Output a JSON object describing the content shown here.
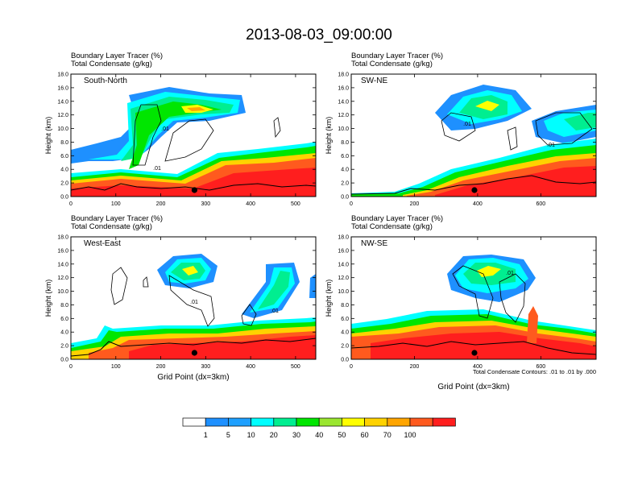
{
  "figure": {
    "title": "2013-08-03_09:00:00",
    "contour_note": "Total Condensate Contours: .01 to .01 by .000",
    "contour_label": ".01"
  },
  "colorbar": {
    "colors": [
      "#ffffff",
      "#1e90ff",
      "#1ea0ff",
      "#00ffff",
      "#00ee90",
      "#00e600",
      "#9ae62f",
      "#ffff00",
      "#ffd200",
      "#ffa500",
      "#ff5a1e",
      "#ff1e1e"
    ],
    "tick_labels": [
      "1",
      "5",
      "10",
      "20",
      "30",
      "40",
      "50",
      "60",
      "70",
      "100"
    ]
  },
  "chart_data": [
    {
      "type": "heatmap",
      "panel": "South-North",
      "label_left_1": "Boundary Layer Tracer   (%)",
      "label_left_2": "Total Condensate   (g/kg)",
      "ylabel": "Height (km)",
      "xlabel": "",
      "xlim": [
        0,
        545
      ],
      "ylim": [
        0,
        18
      ],
      "xticks": [
        0,
        100,
        200,
        300,
        400,
        500
      ],
      "yticks": [
        "0.0",
        "2.0",
        "4.0",
        "6.0",
        "8.0",
        "10.0",
        "12.0",
        "14.0",
        "16.0",
        "18.0"
      ],
      "marker_x": 275,
      "boundary_layer_top_km": [
        [
          0,
          3.0
        ],
        [
          150,
          3.6
        ],
        [
          220,
          2.6
        ],
        [
          280,
          4.5
        ],
        [
          350,
          6.2
        ],
        [
          450,
          6.8
        ],
        [
          545,
          7.2
        ]
      ],
      "cloud_labels": [
        ".01",
        ".01"
      ]
    },
    {
      "type": "heatmap",
      "panel": "SW-NE",
      "label_left_1": "Boundary Layer Tracer   (%)",
      "label_left_2": "Total Condensate   (g/kg)",
      "ylabel": "Height (km)",
      "xlabel": "",
      "xlim": [
        0,
        775
      ],
      "ylim": [
        0,
        18
      ],
      "xticks": [
        0,
        200,
        400,
        600
      ],
      "yticks": [
        "0.0",
        "2.0",
        "4.0",
        "6.0",
        "8.0",
        "10.0",
        "12.0",
        "14.0",
        "16.0",
        "18.0"
      ],
      "marker_x": 390,
      "boundary_layer_top_km": [
        [
          0,
          0.8
        ],
        [
          300,
          3.0
        ],
        [
          450,
          4.2
        ],
        [
          600,
          6.2
        ],
        [
          775,
          7.2
        ]
      ],
      "cloud_labels": [
        ".01",
        ".01"
      ]
    },
    {
      "type": "heatmap",
      "panel": "West-East",
      "label_left_1": "Boundary Layer Tracer   (%)",
      "label_left_2": "Total Condensate   (g/kg)",
      "ylabel": "Height (km)",
      "xlabel": "Grid Point (dx=3km)",
      "xlim": [
        0,
        545
      ],
      "ylim": [
        0,
        18
      ],
      "xticks": [
        0,
        100,
        200,
        300,
        400,
        500
      ],
      "yticks": [
        "0.0",
        "2.0",
        "4.0",
        "6.0",
        "8.0",
        "10.0",
        "12.0",
        "14.0",
        "16.0",
        "18.0"
      ],
      "marker_x": 275,
      "boundary_layer_top_km": [
        [
          0,
          2.0
        ],
        [
          100,
          4.6
        ],
        [
          250,
          4.8
        ],
        [
          400,
          5.3
        ],
        [
          545,
          5.6
        ]
      ],
      "cloud_labels": [
        ".01",
        ".01"
      ]
    },
    {
      "type": "heatmap",
      "panel": "NW-SE",
      "label_left_1": "Boundary Layer Tracer   (%)",
      "label_left_2": "Total Condensate   (g/kg)",
      "ylabel": "Height (km)",
      "xlabel": "Grid Point (dx=3km)",
      "xlim": [
        0,
        775
      ],
      "ylim": [
        0,
        18
      ],
      "xticks": [
        0,
        200,
        400,
        600
      ],
      "yticks": [
        "0.0",
        "2.0",
        "4.0",
        "6.0",
        "8.0",
        "10.0",
        "12.0",
        "14.0",
        "16.0",
        "18.0"
      ],
      "marker_x": 390,
      "boundary_layer_top_km": [
        [
          0,
          4.5
        ],
        [
          300,
          5.6
        ],
        [
          500,
          6.0
        ],
        [
          775,
          4.2
        ]
      ],
      "cloud_labels": [
        ".01"
      ]
    }
  ]
}
